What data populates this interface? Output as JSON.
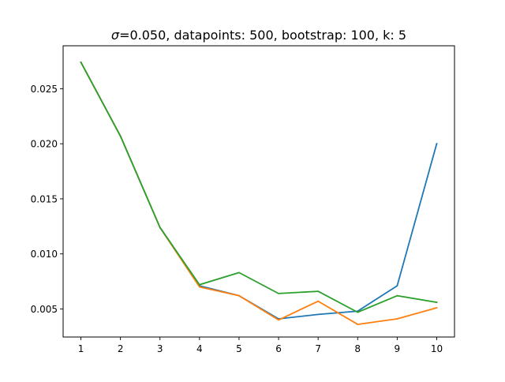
{
  "chart_data": {
    "type": "line",
    "title_sigma": "σ",
    "title_rest": "=0.050, datapoints: 500, bootstrap: 100, k: 5",
    "xlabel": "",
    "ylabel": "",
    "x": [
      1,
      2,
      3,
      4,
      5,
      6,
      7,
      8,
      9,
      10
    ],
    "xlim": [
      0.55,
      10.45
    ],
    "ylim": [
      0.00245,
      0.0289
    ],
    "xticks": [
      1,
      2,
      3,
      4,
      5,
      6,
      7,
      8,
      9,
      10
    ],
    "yticks": [
      0.005,
      0.01,
      0.015,
      0.02,
      0.025
    ],
    "ytick_labels": [
      "0.005",
      "0.010",
      "0.015",
      "0.020",
      "0.025"
    ],
    "grid": false,
    "legend": "none",
    "series": [
      {
        "color": "#1f77b4",
        "values": [
          0.0274,
          0.0207,
          0.0124,
          0.0071,
          0.0062,
          0.0041,
          0.0045,
          0.0048,
          0.0071,
          0.02
        ]
      },
      {
        "color": "#ff7f0e",
        "values": [
          0.0274,
          0.0207,
          0.0124,
          0.007,
          0.0062,
          0.004,
          0.0057,
          0.0036,
          0.0041,
          0.0051
        ]
      },
      {
        "color": "#2ca02c",
        "values": [
          0.0274,
          0.0207,
          0.0124,
          0.0072,
          0.0083,
          0.0064,
          0.0066,
          0.0047,
          0.0062,
          0.0056
        ]
      }
    ]
  }
}
